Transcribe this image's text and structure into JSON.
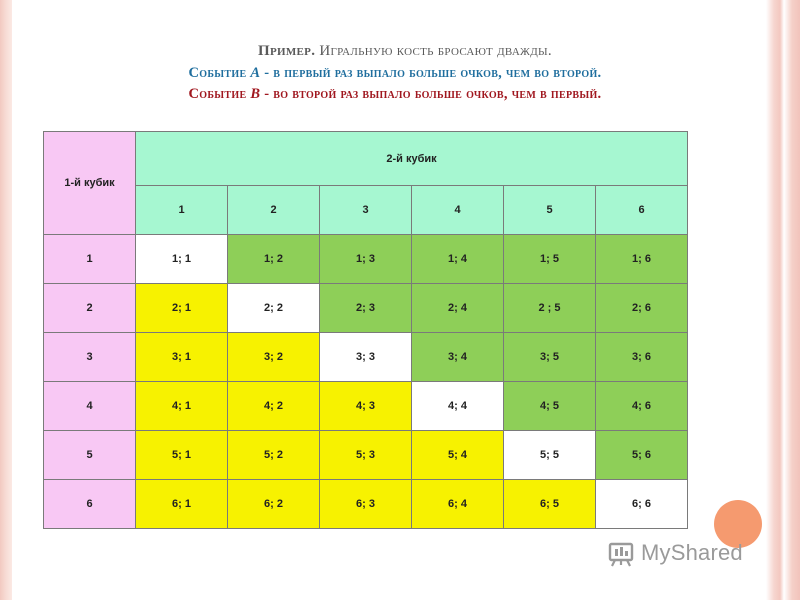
{
  "heading": {
    "line1_label": "Пример.",
    "line1_text": "Игральную кость бросают дважды.",
    "line2_prefix": "Событие ",
    "line2_event": "А",
    "line2_text": " - в первый раз выпало больше очков, чем во второй.",
    "line3_prefix": "Событие ",
    "line3_event": "B",
    "line3_text": " - во второй раз выпало больше очков, чем в первый."
  },
  "table": {
    "row_header_label": "1-й кубик",
    "column_header_label": "2-й кубик",
    "column_numbers": [
      "1",
      "2",
      "3",
      "4",
      "5",
      "6"
    ],
    "rows": [
      {
        "label": "1",
        "cells": [
          "1; 1",
          "1; 2",
          "1; 3",
          "1; 4",
          "1; 5",
          "1; 6"
        ]
      },
      {
        "label": "2",
        "cells": [
          "2; 1",
          "2; 2",
          "2; 3",
          "2; 4",
          "2 ; 5",
          "2; 6"
        ]
      },
      {
        "label": "3",
        "cells": [
          "3; 1",
          "3; 2",
          "3; 3",
          "3; 4",
          "3; 5",
          "3; 6"
        ]
      },
      {
        "label": "4",
        "cells": [
          "4; 1",
          "4; 2",
          "4; 3",
          "4; 4",
          "4; 5",
          "4; 6"
        ]
      },
      {
        "label": "5",
        "cells": [
          "5; 1",
          "5; 2",
          "5; 3",
          "5; 4",
          "5; 5",
          "5; 6"
        ]
      },
      {
        "label": "6",
        "cells": [
          "6; 1",
          "6; 2",
          "6; 3",
          "6; 4",
          "6; 5",
          "6; 6"
        ]
      }
    ]
  },
  "colors": {
    "event_a": "#f7f200",
    "event_b": "#8ecf58",
    "equal": "#ffffff",
    "row_header": "#f8c8f4",
    "column_header": "#a6f7d1"
  },
  "watermark": {
    "text": "MyShared",
    "icon": "myshared-logo-icon"
  }
}
